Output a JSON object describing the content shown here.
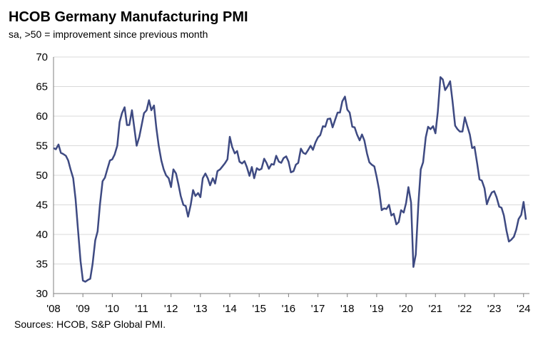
{
  "chart_data": {
    "type": "line",
    "title": "HCOB Germany Manufacturing PMI",
    "subtitle": "sa, >50 = improvement since previous month",
    "source": "Sources: HCOB, S&P Global PMI.",
    "x": [
      2008,
      2008.08,
      2008.17,
      2008.25,
      2008.33,
      2008.42,
      2008.5,
      2008.58,
      2008.67,
      2008.75,
      2008.83,
      2008.92,
      2009,
      2009.08,
      2009.17,
      2009.25,
      2009.33,
      2009.42,
      2009.5,
      2009.58,
      2009.67,
      2009.75,
      2009.83,
      2009.92,
      2010,
      2010.08,
      2010.17,
      2010.25,
      2010.33,
      2010.42,
      2010.5,
      2010.58,
      2010.67,
      2010.75,
      2010.83,
      2010.92,
      2011,
      2011.08,
      2011.17,
      2011.25,
      2011.33,
      2011.42,
      2011.5,
      2011.58,
      2011.67,
      2011.75,
      2011.83,
      2011.92,
      2012,
      2012.08,
      2012.17,
      2012.25,
      2012.33,
      2012.42,
      2012.5,
      2012.58,
      2012.67,
      2012.75,
      2012.83,
      2012.92,
      2013,
      2013.08,
      2013.17,
      2013.25,
      2013.33,
      2013.42,
      2013.5,
      2013.58,
      2013.67,
      2013.75,
      2013.83,
      2013.92,
      2014,
      2014.08,
      2014.17,
      2014.25,
      2014.33,
      2014.42,
      2014.5,
      2014.58,
      2014.67,
      2014.75,
      2014.83,
      2014.92,
      2015,
      2015.08,
      2015.17,
      2015.25,
      2015.33,
      2015.42,
      2015.5,
      2015.58,
      2015.67,
      2015.75,
      2015.83,
      2015.92,
      2016,
      2016.08,
      2016.17,
      2016.25,
      2016.33,
      2016.42,
      2016.5,
      2016.58,
      2016.67,
      2016.75,
      2016.83,
      2016.92,
      2017,
      2017.08,
      2017.17,
      2017.25,
      2017.33,
      2017.42,
      2017.5,
      2017.58,
      2017.67,
      2017.75,
      2017.83,
      2017.92,
      2018,
      2018.08,
      2018.17,
      2018.25,
      2018.33,
      2018.42,
      2018.5,
      2018.58,
      2018.67,
      2018.75,
      2018.83,
      2018.92,
      2019,
      2019.08,
      2019.17,
      2019.25,
      2019.33,
      2019.42,
      2019.5,
      2019.58,
      2019.67,
      2019.75,
      2019.83,
      2019.92,
      2020,
      2020.08,
      2020.17,
      2020.25,
      2020.33,
      2020.42,
      2020.5,
      2020.58,
      2020.67,
      2020.75,
      2020.83,
      2020.92,
      2021,
      2021.08,
      2021.17,
      2021.25,
      2021.33,
      2021.42,
      2021.5,
      2021.58,
      2021.67,
      2021.75,
      2021.83,
      2021.92,
      2022,
      2022.08,
      2022.17,
      2022.25,
      2022.33,
      2022.42,
      2022.5,
      2022.58,
      2022.67,
      2022.75,
      2022.83,
      2022.92,
      2023,
      2023.08,
      2023.17,
      2023.25,
      2023.33,
      2023.42,
      2023.5,
      2023.58,
      2023.67,
      2023.75,
      2023.83,
      2023.92,
      2024,
      2024.08
    ],
    "series": [
      {
        "color": "#3e4a82",
        "values": [
          54.6,
          54.4,
          55.2,
          53.8,
          53.6,
          53.3,
          52.5,
          51.0,
          49.5,
          46.0,
          41.0,
          35.5,
          32.2,
          32.0,
          32.3,
          32.5,
          35.0,
          39.0,
          40.5,
          45.0,
          49.0,
          49.6,
          51.0,
          52.5,
          52.7,
          53.5,
          55.0,
          59.0,
          60.5,
          61.5,
          58.5,
          58.5,
          61.0,
          58.0,
          55.0,
          56.5,
          58.5,
          60.5,
          61.0,
          62.7,
          61.0,
          61.8,
          58.0,
          55.0,
          52.5,
          51.0,
          50.0,
          49.5,
          48.0,
          51.0,
          50.3,
          48.5,
          46.5,
          45.0,
          44.8,
          43.0,
          45.0,
          47.5,
          46.5,
          47.0,
          46.3,
          49.5,
          50.3,
          49.5,
          48.3,
          49.5,
          48.6,
          50.7,
          51.0,
          51.5,
          52.0,
          52.7,
          56.5,
          54.8,
          53.7,
          54.1,
          52.3,
          52.0,
          52.4,
          51.4,
          49.9,
          51.4,
          49.5,
          51.2,
          50.9,
          51.1,
          52.8,
          52.1,
          51.1,
          51.9,
          51.8,
          53.3,
          52.3,
          52.1,
          52.9,
          53.2,
          52.3,
          50.5,
          50.7,
          51.8,
          52.1,
          54.5,
          53.8,
          53.6,
          54.3,
          55.0,
          54.3,
          55.6,
          56.4,
          56.8,
          58.3,
          58.2,
          59.5,
          59.6,
          58.1,
          59.3,
          60.6,
          60.6,
          62.5,
          63.3,
          61.1,
          60.6,
          58.2,
          58.1,
          56.9,
          55.9,
          56.9,
          55.9,
          53.7,
          52.2,
          51.8,
          51.5,
          49.7,
          47.6,
          44.1,
          44.4,
          44.3,
          45.0,
          43.2,
          43.5,
          41.7,
          42.1,
          44.1,
          43.7,
          45.3,
          48.0,
          45.4,
          34.5,
          36.6,
          45.2,
          51.0,
          52.2,
          56.4,
          58.2,
          57.8,
          58.3,
          57.1,
          60.7,
          66.6,
          66.2,
          64.4,
          65.1,
          65.9,
          62.6,
          58.4,
          57.8,
          57.4,
          57.4,
          59.8,
          58.4,
          56.9,
          54.6,
          54.8,
          52.0,
          49.3,
          49.1,
          47.8,
          45.1,
          46.2,
          47.1,
          47.3,
          46.3,
          44.7,
          44.5,
          43.2,
          40.6,
          38.8,
          39.1,
          39.6,
          40.8,
          42.6,
          43.3,
          45.5,
          42.5
        ]
      }
    ],
    "xlim": [
      2008,
      2024.2
    ],
    "xticks": [
      {
        "value": 2008,
        "label": "'08"
      },
      {
        "value": 2009,
        "label": "'09"
      },
      {
        "value": 2010,
        "label": "'10"
      },
      {
        "value": 2011,
        "label": "'11"
      },
      {
        "value": 2012,
        "label": "'12"
      },
      {
        "value": 2013,
        "label": "'13"
      },
      {
        "value": 2014,
        "label": "'14"
      },
      {
        "value": 2015,
        "label": "'15"
      },
      {
        "value": 2016,
        "label": "'16"
      },
      {
        "value": 2017,
        "label": "'17"
      },
      {
        "value": 2018,
        "label": "'18"
      },
      {
        "value": 2019,
        "label": "'19"
      },
      {
        "value": 2020,
        "label": "'20"
      },
      {
        "value": 2021,
        "label": "'21"
      },
      {
        "value": 2022,
        "label": "'22"
      },
      {
        "value": 2023,
        "label": "'23"
      },
      {
        "value": 2024,
        "label": "'24"
      }
    ],
    "ylim": [
      30,
      70
    ],
    "yticks": [
      30,
      35,
      40,
      45,
      50,
      55,
      60,
      65,
      70
    ],
    "grid": true
  }
}
